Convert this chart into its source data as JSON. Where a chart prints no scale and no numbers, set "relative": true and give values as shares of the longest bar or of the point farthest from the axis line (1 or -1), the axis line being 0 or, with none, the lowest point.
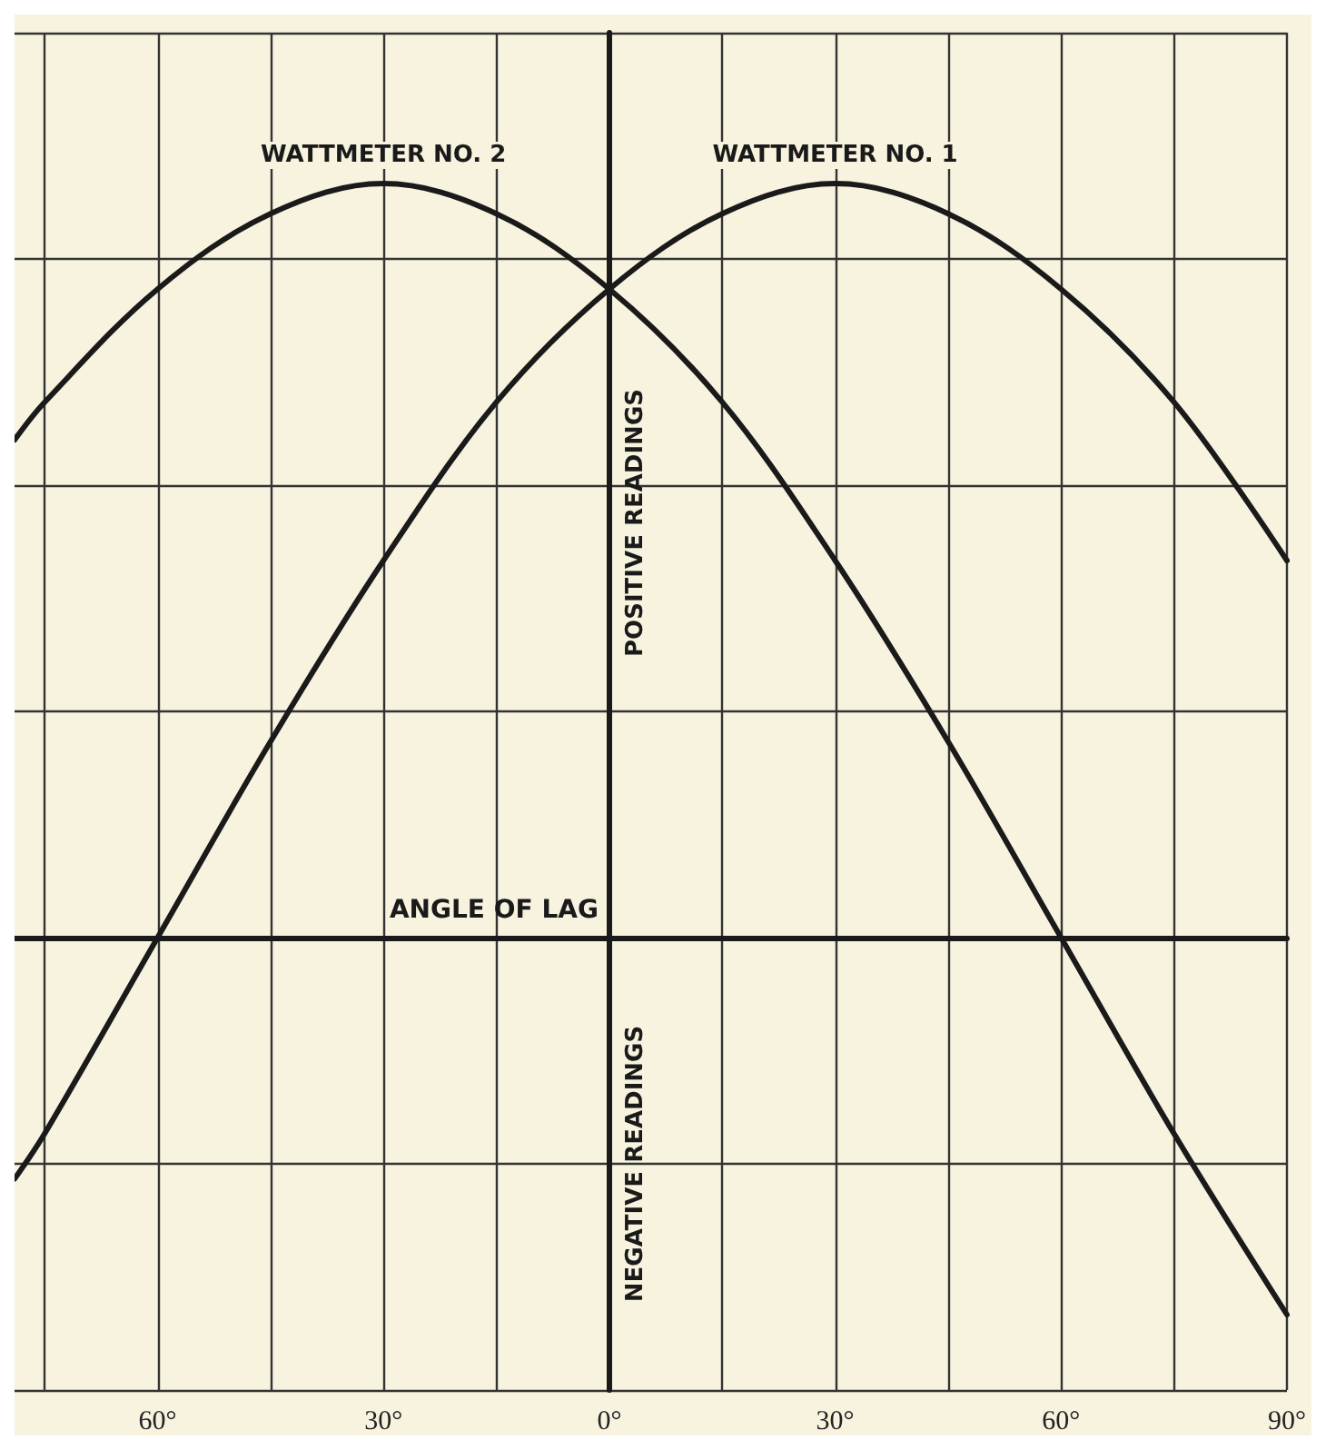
{
  "chart_data": {
    "type": "line",
    "relative": true,
    "xlabel": "ANGLE OF LAG",
    "annotations": [
      "POSITIVE READINGS",
      "NEGATIVE READINGS"
    ],
    "x": [
      -79,
      -75,
      -60,
      -45,
      -30,
      -15,
      0,
      15,
      30,
      45,
      60,
      75,
      90
    ],
    "xlim": [
      -79,
      90
    ],
    "xticks": [
      {
        "value": -75,
        "label": null
      },
      {
        "value": -60,
        "label": "60°"
      },
      {
        "value": -45,
        "label": null
      },
      {
        "value": -30,
        "label": "30°"
      },
      {
        "value": -15,
        "label": null
      },
      {
        "value": 0,
        "label": "0°"
      },
      {
        "value": 15,
        "label": null
      },
      {
        "value": 30,
        "label": "30°"
      },
      {
        "value": 45,
        "label": null
      },
      {
        "value": 60,
        "label": "60°"
      },
      {
        "value": 75,
        "label": null
      },
      {
        "value": 90,
        "label": "90°"
      }
    ],
    "series": [
      {
        "name": "WATTMETER NO. 1",
        "color": "#1a1a1a",
        "values": [
          -0.32,
          -0.26,
          0,
          0.26,
          0.5,
          0.71,
          0.86,
          0.96,
          1,
          0.96,
          0.86,
          0.71,
          0.5
        ]
      },
      {
        "name": "WATTMETER NO. 2",
        "color": "#1a1a1a",
        "values": [
          0.66,
          0.71,
          0.86,
          0.96,
          1,
          0.96,
          0.86,
          0.71,
          0.5,
          0.26,
          0,
          -0.26,
          -0.5
        ]
      }
    ],
    "grid": true,
    "legend": false,
    "marker": "none",
    "line_style": "solid"
  }
}
